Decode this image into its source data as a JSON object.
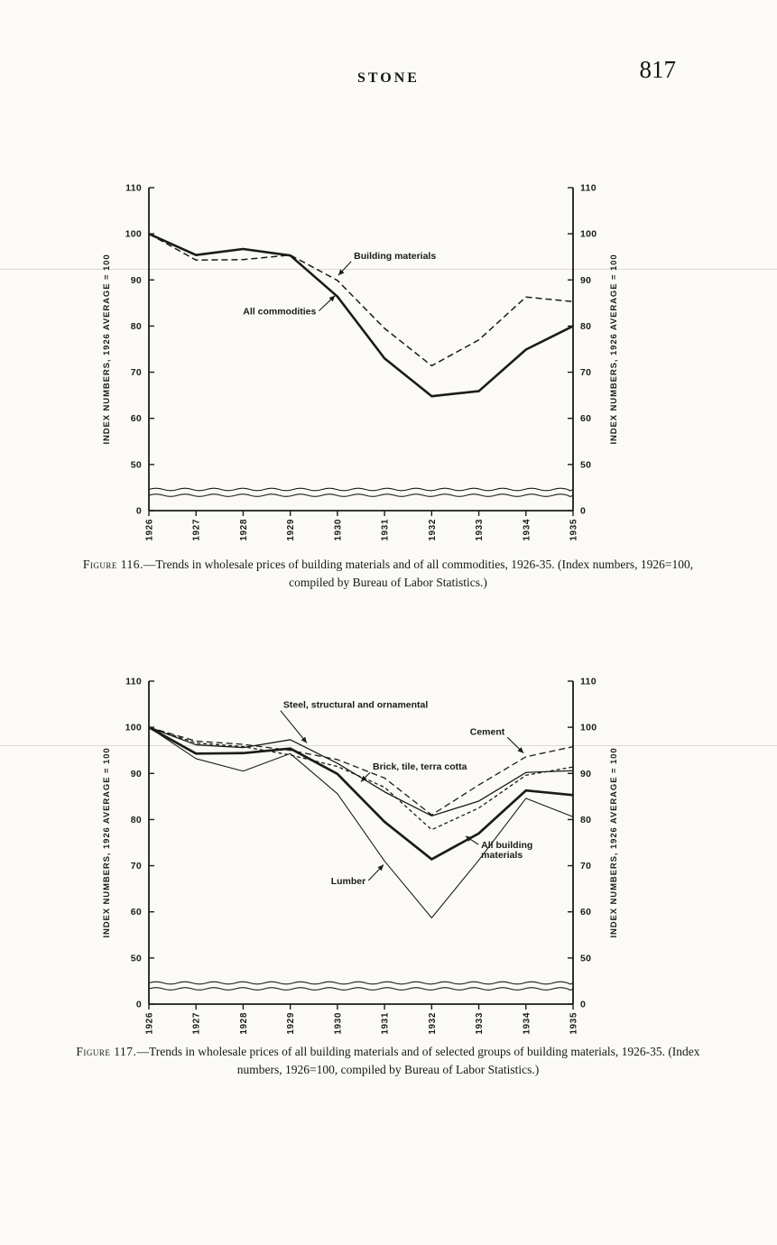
{
  "page": {
    "header_title": "STONE",
    "page_number": "817"
  },
  "figures": [
    {
      "caption_prefix": "Figure 116.",
      "caption_body": "—Trends in wholesale prices of building materials and of all commodities, 1926-35. (Index numbers, 1926=100, compiled by Bureau of Labor Statistics.)"
    },
    {
      "caption_prefix": "Figure 117.",
      "caption_body": "—Trends in wholesale prices of all building materials and of selected groups of building materials, 1926-35. (Index numbers, 1926=100, compiled by Bureau of Labor Statistics.)"
    }
  ],
  "chart_data": [
    {
      "type": "line",
      "figure": "116",
      "title": "Trends in wholesale prices of building materials and of all commodities, 1926-35",
      "x": [
        1926,
        1927,
        1928,
        1929,
        1930,
        1931,
        1932,
        1933,
        1934,
        1935
      ],
      "xlabel": "",
      "ylabel": "INDEX NUMBERS, 1926 AVERAGE = 100",
      "ylabel_right": "INDEX NUMBERS, 1926 AVERAGE = 100",
      "yticks": [
        110,
        100,
        90,
        80,
        70,
        60,
        50,
        0
      ],
      "ylim": [
        50,
        110
      ],
      "broken_axis": true,
      "grid": false,
      "legend_position": "inline-annotations",
      "series": [
        {
          "name": "Building materials",
          "style": "dashed",
          "width": 1.5,
          "values": [
            100,
            94.3,
            94.4,
            95.4,
            89.9,
            79.5,
            71.4,
            77.0,
            86.3,
            85.3
          ]
        },
        {
          "name": "All commodities",
          "style": "solid",
          "width": 2.6,
          "values": [
            100,
            95.4,
            96.7,
            95.3,
            86.4,
            73.0,
            64.8,
            65.9,
            74.9,
            80.0
          ]
        }
      ],
      "annotations": [
        {
          "text": "Building materials",
          "anchor": "start",
          "tx": 1930.35,
          "ty": 94.6,
          "ax": 1930.02,
          "ay": 91.0
        },
        {
          "text": "All commodities",
          "anchor": "end",
          "tx": 1929.55,
          "ty": 82.5,
          "ax": 1929.95,
          "ay": 86.6
        }
      ]
    },
    {
      "type": "line",
      "figure": "117",
      "title": "Trends in wholesale prices of all building materials and of selected groups of building materials, 1926-35",
      "x": [
        1926,
        1927,
        1928,
        1929,
        1930,
        1931,
        1932,
        1933,
        1934,
        1935
      ],
      "xlabel": "",
      "ylabel": "INDEX NUMBERS, 1926 AVERAGE = 100",
      "ylabel_right": "INDEX NUMBERS, 1926 AVERAGE = 100",
      "yticks": [
        110,
        100,
        90,
        80,
        70,
        60,
        50,
        0
      ],
      "ylim": [
        50,
        110
      ],
      "broken_axis": true,
      "grid": false,
      "legend_position": "inline-annotations",
      "series": [
        {
          "name": "Steel, structural and ornamental",
          "style": "solid",
          "width": 1.3,
          "values": [
            100,
            96.2,
            95.6,
            97.3,
            92.2,
            86.0,
            80.8,
            84.0,
            90.2,
            90.6
          ]
        },
        {
          "name": "Cement",
          "style": "dashed",
          "width": 1.3,
          "values": [
            100,
            97.0,
            96.3,
            95.0,
            93.0,
            89.0,
            81.0,
            87.5,
            93.6,
            95.8
          ]
        },
        {
          "name": "Brick, tile, terra cotta",
          "style": "shortdash",
          "width": 1.3,
          "values": [
            100,
            96.6,
            95.8,
            94.0,
            91.5,
            87.0,
            77.8,
            82.5,
            89.6,
            91.4
          ]
        },
        {
          "name": "Lumber",
          "style": "solid",
          "width": 1.1,
          "values": [
            100,
            93.2,
            90.5,
            94.3,
            85.6,
            71.0,
            58.7,
            71.2,
            84.6,
            80.6
          ]
        },
        {
          "name": "All building materials",
          "style": "solid",
          "width": 2.7,
          "values": [
            100,
            94.3,
            94.4,
            95.4,
            89.9,
            79.5,
            71.4,
            77.0,
            86.3,
            85.3
          ]
        }
      ],
      "annotations": [
        {
          "text": "Steel, structural and ornamental",
          "anchor": "start",
          "tx": 1928.85,
          "ty": 104.2,
          "ax": 1929.35,
          "ay": 96.6
        },
        {
          "text": "Cement",
          "anchor": "end",
          "tx": 1933.55,
          "ty": 98.4,
          "ax": 1933.95,
          "ay": 94.4
        },
        {
          "text": "Brick, tile, terra cotta",
          "anchor": "start",
          "tx": 1930.75,
          "ty": 90.8,
          "ax": 1930.5,
          "ay": 88.2
        },
        {
          "text": "Lumber",
          "anchor": "end",
          "tx": 1930.6,
          "ty": 66.0,
          "ax": 1930.98,
          "ay": 70.2
        },
        {
          "text": "All building\nmaterials",
          "anchor": "start",
          "tx": 1933.05,
          "ty": 73.8,
          "ax": 1932.72,
          "ay": 76.4
        }
      ]
    }
  ]
}
